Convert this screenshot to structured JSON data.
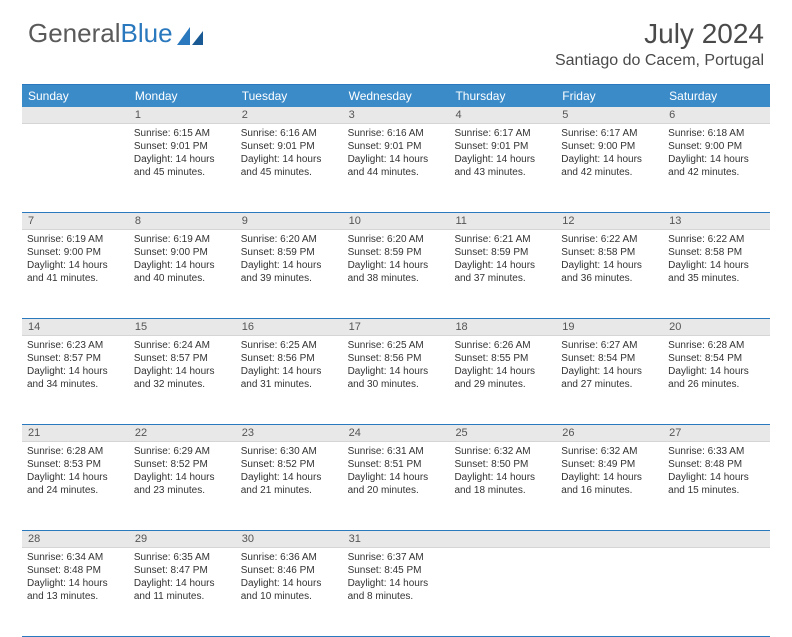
{
  "brand": {
    "part1": "General",
    "part2": "Blue"
  },
  "title": "July 2024",
  "location": "Santiago do Cacem, Portugal",
  "day_headers": [
    "Sunday",
    "Monday",
    "Tuesday",
    "Wednesday",
    "Thursday",
    "Friday",
    "Saturday"
  ],
  "colors": {
    "header_bg": "#3b8bc9",
    "header_text": "#ffffff",
    "border": "#2a78bd",
    "daynum_bg": "#e8e8e8",
    "text": "#333333",
    "logo_gray": "#5a5a5a",
    "logo_blue": "#2a78bd"
  },
  "weeks": [
    {
      "nums": [
        "",
        "1",
        "2",
        "3",
        "4",
        "5",
        "6"
      ],
      "cells": [
        [],
        [
          "Sunrise: 6:15 AM",
          "Sunset: 9:01 PM",
          "Daylight: 14 hours",
          "and 45 minutes."
        ],
        [
          "Sunrise: 6:16 AM",
          "Sunset: 9:01 PM",
          "Daylight: 14 hours",
          "and 45 minutes."
        ],
        [
          "Sunrise: 6:16 AM",
          "Sunset: 9:01 PM",
          "Daylight: 14 hours",
          "and 44 minutes."
        ],
        [
          "Sunrise: 6:17 AM",
          "Sunset: 9:01 PM",
          "Daylight: 14 hours",
          "and 43 minutes."
        ],
        [
          "Sunrise: 6:17 AM",
          "Sunset: 9:00 PM",
          "Daylight: 14 hours",
          "and 42 minutes."
        ],
        [
          "Sunrise: 6:18 AM",
          "Sunset: 9:00 PM",
          "Daylight: 14 hours",
          "and 42 minutes."
        ]
      ]
    },
    {
      "nums": [
        "7",
        "8",
        "9",
        "10",
        "11",
        "12",
        "13"
      ],
      "cells": [
        [
          "Sunrise: 6:19 AM",
          "Sunset: 9:00 PM",
          "Daylight: 14 hours",
          "and 41 minutes."
        ],
        [
          "Sunrise: 6:19 AM",
          "Sunset: 9:00 PM",
          "Daylight: 14 hours",
          "and 40 minutes."
        ],
        [
          "Sunrise: 6:20 AM",
          "Sunset: 8:59 PM",
          "Daylight: 14 hours",
          "and 39 minutes."
        ],
        [
          "Sunrise: 6:20 AM",
          "Sunset: 8:59 PM",
          "Daylight: 14 hours",
          "and 38 minutes."
        ],
        [
          "Sunrise: 6:21 AM",
          "Sunset: 8:59 PM",
          "Daylight: 14 hours",
          "and 37 minutes."
        ],
        [
          "Sunrise: 6:22 AM",
          "Sunset: 8:58 PM",
          "Daylight: 14 hours",
          "and 36 minutes."
        ],
        [
          "Sunrise: 6:22 AM",
          "Sunset: 8:58 PM",
          "Daylight: 14 hours",
          "and 35 minutes."
        ]
      ]
    },
    {
      "nums": [
        "14",
        "15",
        "16",
        "17",
        "18",
        "19",
        "20"
      ],
      "cells": [
        [
          "Sunrise: 6:23 AM",
          "Sunset: 8:57 PM",
          "Daylight: 14 hours",
          "and 34 minutes."
        ],
        [
          "Sunrise: 6:24 AM",
          "Sunset: 8:57 PM",
          "Daylight: 14 hours",
          "and 32 minutes."
        ],
        [
          "Sunrise: 6:25 AM",
          "Sunset: 8:56 PM",
          "Daylight: 14 hours",
          "and 31 minutes."
        ],
        [
          "Sunrise: 6:25 AM",
          "Sunset: 8:56 PM",
          "Daylight: 14 hours",
          "and 30 minutes."
        ],
        [
          "Sunrise: 6:26 AM",
          "Sunset: 8:55 PM",
          "Daylight: 14 hours",
          "and 29 minutes."
        ],
        [
          "Sunrise: 6:27 AM",
          "Sunset: 8:54 PM",
          "Daylight: 14 hours",
          "and 27 minutes."
        ],
        [
          "Sunrise: 6:28 AM",
          "Sunset: 8:54 PM",
          "Daylight: 14 hours",
          "and 26 minutes."
        ]
      ]
    },
    {
      "nums": [
        "21",
        "22",
        "23",
        "24",
        "25",
        "26",
        "27"
      ],
      "cells": [
        [
          "Sunrise: 6:28 AM",
          "Sunset: 8:53 PM",
          "Daylight: 14 hours",
          "and 24 minutes."
        ],
        [
          "Sunrise: 6:29 AM",
          "Sunset: 8:52 PM",
          "Daylight: 14 hours",
          "and 23 minutes."
        ],
        [
          "Sunrise: 6:30 AM",
          "Sunset: 8:52 PM",
          "Daylight: 14 hours",
          "and 21 minutes."
        ],
        [
          "Sunrise: 6:31 AM",
          "Sunset: 8:51 PM",
          "Daylight: 14 hours",
          "and 20 minutes."
        ],
        [
          "Sunrise: 6:32 AM",
          "Sunset: 8:50 PM",
          "Daylight: 14 hours",
          "and 18 minutes."
        ],
        [
          "Sunrise: 6:32 AM",
          "Sunset: 8:49 PM",
          "Daylight: 14 hours",
          "and 16 minutes."
        ],
        [
          "Sunrise: 6:33 AM",
          "Sunset: 8:48 PM",
          "Daylight: 14 hours",
          "and 15 minutes."
        ]
      ]
    },
    {
      "nums": [
        "28",
        "29",
        "30",
        "31",
        "",
        "",
        ""
      ],
      "cells": [
        [
          "Sunrise: 6:34 AM",
          "Sunset: 8:48 PM",
          "Daylight: 14 hours",
          "and 13 minutes."
        ],
        [
          "Sunrise: 6:35 AM",
          "Sunset: 8:47 PM",
          "Daylight: 14 hours",
          "and 11 minutes."
        ],
        [
          "Sunrise: 6:36 AM",
          "Sunset: 8:46 PM",
          "Daylight: 14 hours",
          "and 10 minutes."
        ],
        [
          "Sunrise: 6:37 AM",
          "Sunset: 8:45 PM",
          "Daylight: 14 hours",
          "and 8 minutes."
        ],
        [],
        [],
        []
      ]
    }
  ]
}
